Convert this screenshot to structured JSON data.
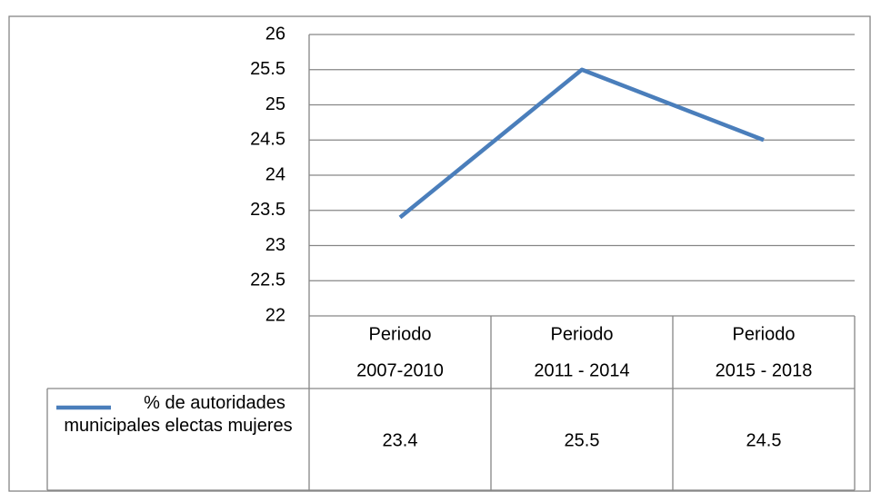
{
  "chart_data": {
    "type": "line",
    "categories": [
      [
        "Periodo",
        "2007-2010"
      ],
      [
        "Periodo",
        "2011 - 2014"
      ],
      [
        "Periodo",
        "2015 - 2018"
      ]
    ],
    "series": [
      {
        "name": "% de autoridades municipales electas mujeres",
        "color": "#4a7ebb",
        "values": [
          23.4,
          25.5,
          24.5
        ]
      }
    ],
    "ylim": [
      22,
      26
    ],
    "yticks": [
      22,
      22.5,
      23,
      23.5,
      24,
      24.5,
      25,
      25.5,
      26
    ],
    "grid": true,
    "data_table": true
  }
}
